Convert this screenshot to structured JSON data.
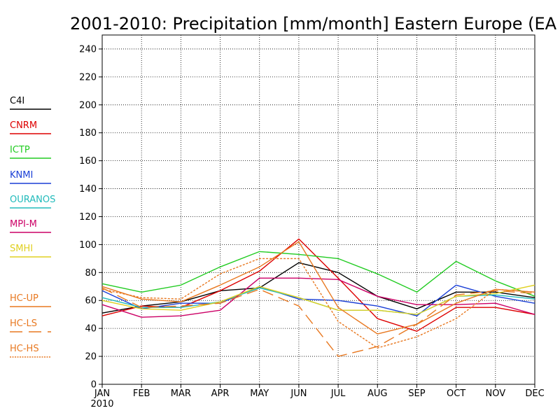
{
  "chart_data": {
    "type": "line",
    "title": "2001-2010: Precipitation [mm/month] Eastern Europe (EA",
    "xlabel": "",
    "ylabel": "",
    "categories": [
      "JAN",
      "FEB",
      "MAR",
      "APR",
      "MAY",
      "JUN",
      "JUL",
      "AUG",
      "SEP",
      "OCT",
      "NOV",
      "DEC"
    ],
    "x_start_label": "2010",
    "ylim": [
      0,
      250
    ],
    "yticks": [
      "0",
      "20",
      "40",
      "60",
      "80",
      "100",
      "120",
      "140",
      "160",
      "180",
      "200",
      "220",
      "240"
    ],
    "grid": true,
    "legend_position": "left",
    "series": [
      {
        "name": "C4I",
        "color": "#000000",
        "dash": "solid",
        "values": [
          51,
          56,
          59,
          67,
          69,
          87,
          80,
          63,
          54,
          66,
          66,
          62
        ]
      },
      {
        "name": "CNRM",
        "color": "#dd0000",
        "dash": "solid",
        "values": [
          49,
          56,
          55,
          67,
          81,
          104,
          76,
          47,
          38,
          55,
          55,
          50
        ]
      },
      {
        "name": "ICTP",
        "color": "#22cc22",
        "dash": "solid",
        "values": [
          72,
          66,
          71,
          84,
          95,
          93,
          90,
          79,
          66,
          88,
          74,
          63
        ]
      },
      {
        "name": "KNMI",
        "color": "#1a3fd6",
        "dash": "solid",
        "values": [
          67,
          54,
          58,
          58,
          70,
          61,
          60,
          56,
          49,
          71,
          63,
          58
        ]
      },
      {
        "name": "OURANOS",
        "color": "#22bbbb",
        "dash": "solid",
        "values": [
          62,
          55,
          55,
          59,
          69,
          62,
          53,
          53,
          50,
          63,
          64,
          61
        ]
      },
      {
        "name": "MPI-M",
        "color": "#cc0066",
        "dash": "solid",
        "values": [
          57,
          48,
          49,
          53,
          76,
          76,
          75,
          63,
          57,
          57,
          58,
          50
        ]
      },
      {
        "name": "SMHI",
        "color": "#e0d020",
        "dash": "solid",
        "values": [
          60,
          54,
          53,
          59,
          70,
          62,
          53,
          53,
          50,
          63,
          65,
          71
        ]
      },
      {
        "name": "HC-UP",
        "color": "#e87820",
        "dash": "solid",
        "values": [
          70,
          61,
          59,
          71,
          84,
          102,
          55,
          36,
          43,
          58,
          68,
          66
        ]
      },
      {
        "name": "HC-LS",
        "color": "#e87820",
        "dash": "long",
        "values": [
          69,
          55,
          56,
          58,
          68,
          56,
          20,
          27,
          43,
          64,
          67,
          65
        ]
      },
      {
        "name": "HC-HS",
        "color": "#e87820",
        "dash": "short",
        "values": [
          68,
          62,
          61,
          79,
          90,
          90,
          45,
          26,
          34,
          47,
          68,
          66
        ]
      }
    ]
  }
}
